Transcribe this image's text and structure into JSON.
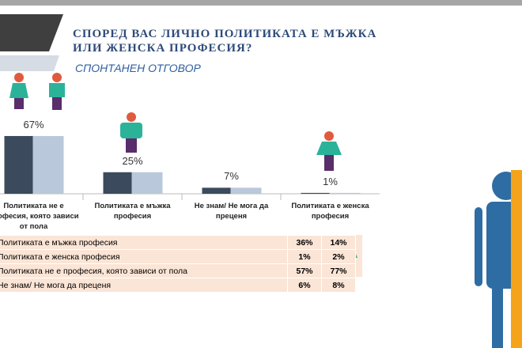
{
  "title": "СПОРЕД ВАС ЛИЧНО ПОЛИТИКАТА Е МЪЖКА ИЛИ ЖЕНСКА ПРОФЕСИЯ?",
  "subtitle": "СПОНТАНЕН ОТГОВОР",
  "chart_data": {
    "type": "bar",
    "categories": [
      "Политиката не е професия, която зависи от пола",
      "Политиката е мъжка професия",
      "Не знам/ Не мога да преценя",
      "Политиката е женска професия"
    ],
    "values": [
      67,
      25,
      7,
      1
    ],
    "value_labels": [
      "67%",
      "25%",
      "7%",
      "1%"
    ],
    "colors": [
      "#3b4a5c",
      "#b9c8da"
    ],
    "ylim": [
      0,
      100
    ]
  },
  "table": {
    "rows": [
      [
        "Политиката е мъжка професия",
        "36%",
        "14%"
      ],
      [
        "Политиката е женска професия",
        "1%",
        "2%"
      ],
      [
        "Политиката не е професия, която зависи от пола",
        "57%",
        "77%"
      ],
      [
        "Не знам/ Не мога да преценя",
        "6%",
        "8%"
      ]
    ]
  }
}
